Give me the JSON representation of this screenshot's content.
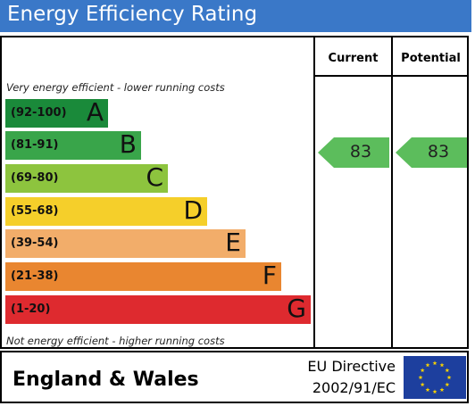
{
  "title": "Energy Efficiency Rating",
  "columns": {
    "current": "Current",
    "potential": "Potential"
  },
  "top_note": "Very energy efficient - lower running costs",
  "bottom_note": "Not energy efficient - higher running costs",
  "bands": [
    {
      "range": "(92-100)",
      "letter": "A",
      "color": "#1a8a3a"
    },
    {
      "range": "(81-91)",
      "letter": "B",
      "color": "#39a54a"
    },
    {
      "range": "(69-80)",
      "letter": "C",
      "color": "#8dc43e"
    },
    {
      "range": "(55-68)",
      "letter": "D",
      "color": "#f5cf2a"
    },
    {
      "range": "(39-54)",
      "letter": "E",
      "color": "#f2ad6a"
    },
    {
      "range": "(21-38)",
      "letter": "F",
      "color": "#e98630"
    },
    {
      "range": "(1-20)",
      "letter": "G",
      "color": "#de2a2f"
    }
  ],
  "ratings": {
    "current": "83",
    "potential": "83",
    "arrow_color": "#5cbd5c"
  },
  "footer": {
    "region": "England & Wales",
    "directive_line1": "EU Directive",
    "directive_line2": "2002/91/EC"
  },
  "colors": {
    "title_bar": "#3a78c8",
    "eu_flag": "#1d3f9e",
    "eu_stars": "#f7d100"
  }
}
